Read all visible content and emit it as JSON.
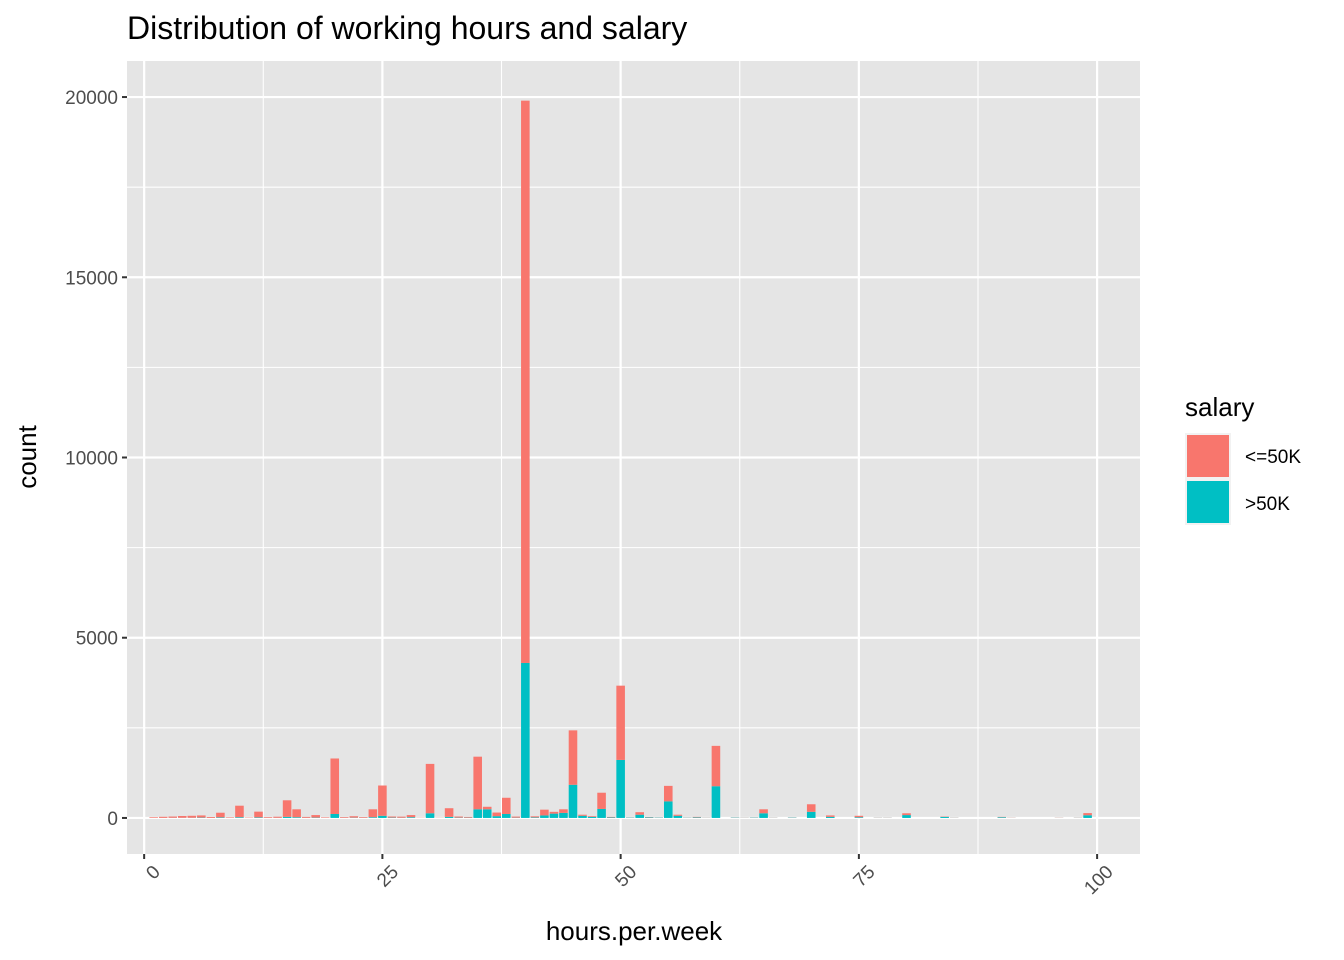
{
  "chart_data": {
    "type": "bar",
    "stacked": true,
    "title": "Distribution of working hours and salary",
    "xlabel": "hours.per.week",
    "ylabel": "count",
    "xlim": [
      -1.8,
      104.5
    ],
    "ylim": [
      -1000,
      21000
    ],
    "x_ticks": [
      0,
      25,
      50,
      75,
      100
    ],
    "x_tick_labels": [
      "0",
      "25",
      "50",
      "75",
      "100"
    ],
    "x_tick_rotation": -45,
    "y_ticks": [
      0,
      5000,
      10000,
      15000,
      20000
    ],
    "y_tick_labels": [
      "0",
      "5000",
      "10000",
      "15000",
      "20000"
    ],
    "grid": true,
    "panel_background": "#e5e5e5",
    "grid_color": "#ffffff",
    "legend": {
      "title": "salary",
      "position": "right",
      "entries": [
        {
          "label": "<=50K",
          "color": "#F8766D"
        },
        {
          "label": ">50K",
          "color": "#00BFC4"
        }
      ]
    },
    "series": [
      {
        "name": "<=50K",
        "color": "#F8766D",
        "points": [
          [
            1,
            19
          ],
          [
            2,
            30
          ],
          [
            3,
            35
          ],
          [
            4,
            50
          ],
          [
            5,
            55
          ],
          [
            6,
            60
          ],
          [
            7,
            25
          ],
          [
            8,
            130
          ],
          [
            9,
            15
          ],
          [
            10,
            320
          ],
          [
            11,
            10
          ],
          [
            12,
            160
          ],
          [
            13,
            20
          ],
          [
            14,
            30
          ],
          [
            15,
            460
          ],
          [
            16,
            220
          ],
          [
            17,
            25
          ],
          [
            18,
            70
          ],
          [
            19,
            15
          ],
          [
            20,
            1540
          ],
          [
            21,
            20
          ],
          [
            22,
            40
          ],
          [
            23,
            20
          ],
          [
            24,
            220
          ],
          [
            25,
            840
          ],
          [
            26,
            30
          ],
          [
            27,
            30
          ],
          [
            28,
            60
          ],
          [
            29,
            6
          ],
          [
            30,
            1370
          ],
          [
            31,
            5
          ],
          [
            32,
            240
          ],
          [
            33,
            30
          ],
          [
            34,
            20
          ],
          [
            35,
            1460
          ],
          [
            36,
            70
          ],
          [
            37,
            100
          ],
          [
            38,
            450
          ],
          [
            39,
            30
          ],
          [
            40,
            15600
          ],
          [
            41,
            30
          ],
          [
            42,
            160
          ],
          [
            43,
            50
          ],
          [
            44,
            100
          ],
          [
            45,
            1510
          ],
          [
            46,
            30
          ],
          [
            47,
            20
          ],
          [
            48,
            450
          ],
          [
            49,
            15
          ],
          [
            50,
            2060
          ],
          [
            51,
            5
          ],
          [
            52,
            70
          ],
          [
            53,
            10
          ],
          [
            54,
            5
          ],
          [
            55,
            430
          ],
          [
            56,
            30
          ],
          [
            57,
            5
          ],
          [
            58,
            15
          ],
          [
            59,
            5
          ],
          [
            60,
            1120
          ],
          [
            62,
            5
          ],
          [
            63,
            5
          ],
          [
            64,
            5
          ],
          [
            65,
            110
          ],
          [
            66,
            5
          ],
          [
            68,
            5
          ],
          [
            70,
            210
          ],
          [
            72,
            40
          ],
          [
            75,
            40
          ],
          [
            77,
            5
          ],
          [
            78,
            5
          ],
          [
            80,
            50
          ],
          [
            84,
            10
          ],
          [
            85,
            5
          ],
          [
            90,
            10
          ],
          [
            91,
            5
          ],
          [
            96,
            5
          ],
          [
            98,
            5
          ],
          [
            99,
            60
          ]
        ]
      },
      {
        "name": ">50K",
        "color": "#00BFC4",
        "points": [
          [
            1,
            1
          ],
          [
            2,
            2
          ],
          [
            3,
            4
          ],
          [
            4,
            4
          ],
          [
            5,
            5
          ],
          [
            6,
            10
          ],
          [
            7,
            2
          ],
          [
            8,
            15
          ],
          [
            9,
            3
          ],
          [
            10,
            20
          ],
          [
            11,
            1
          ],
          [
            12,
            15
          ],
          [
            13,
            3
          ],
          [
            14,
            4
          ],
          [
            15,
            30
          ],
          [
            16,
            20
          ],
          [
            17,
            4
          ],
          [
            18,
            10
          ],
          [
            19,
            3
          ],
          [
            20,
            110
          ],
          [
            21,
            4
          ],
          [
            22,
            8
          ],
          [
            23,
            4
          ],
          [
            24,
            20
          ],
          [
            25,
            60
          ],
          [
            26,
            10
          ],
          [
            27,
            6
          ],
          [
            28,
            20
          ],
          [
            29,
            1
          ],
          [
            30,
            130
          ],
          [
            31,
            2
          ],
          [
            32,
            30
          ],
          [
            33,
            9
          ],
          [
            34,
            8
          ],
          [
            35,
            240
          ],
          [
            36,
            240
          ],
          [
            37,
            50
          ],
          [
            38,
            110
          ],
          [
            39,
            8
          ],
          [
            40,
            4300
          ],
          [
            41,
            15
          ],
          [
            42,
            70
          ],
          [
            43,
            120
          ],
          [
            44,
            140
          ],
          [
            45,
            920
          ],
          [
            46,
            60
          ],
          [
            47,
            30
          ],
          [
            48,
            250
          ],
          [
            49,
            14
          ],
          [
            50,
            1610
          ],
          [
            51,
            10
          ],
          [
            52,
            90
          ],
          [
            53,
            15
          ],
          [
            54,
            10
          ],
          [
            55,
            460
          ],
          [
            56,
            60
          ],
          [
            57,
            8
          ],
          [
            58,
            15
          ],
          [
            59,
            5
          ],
          [
            60,
            880
          ],
          [
            62,
            10
          ],
          [
            63,
            5
          ],
          [
            64,
            10
          ],
          [
            65,
            130
          ],
          [
            66,
            5
          ],
          [
            68,
            10
          ],
          [
            70,
            170
          ],
          [
            72,
            30
          ],
          [
            75,
            20
          ],
          [
            77,
            5
          ],
          [
            78,
            5
          ],
          [
            80,
            80
          ],
          [
            84,
            30
          ],
          [
            85,
            5
          ],
          [
            90,
            20
          ],
          [
            91,
            3
          ],
          [
            96,
            3
          ],
          [
            98,
            5
          ],
          [
            99,
            75
          ]
        ]
      }
    ]
  }
}
